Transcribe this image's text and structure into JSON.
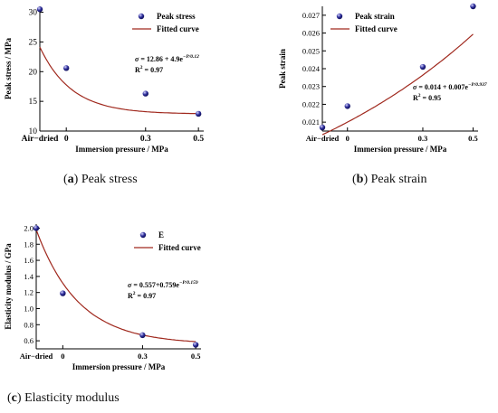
{
  "charts": [
    {
      "id": "a",
      "type": "scatter",
      "caption": {
        "letter": "a",
        "text": "Peak stress"
      },
      "xlabel": "Immersion pressure / MPa",
      "ylabel": "Peak stress / MPa",
      "xlim": [
        -0.1,
        0.52
      ],
      "ylim": [
        10,
        31
      ],
      "x_ticks": [
        {
          "value": -0.1,
          "label": "Air−dried"
        },
        {
          "value": 0,
          "label": "0"
        },
        {
          "value": 0.3,
          "label": "0.3"
        },
        {
          "value": 0.5,
          "label": "0.5"
        }
      ],
      "y_ticks": [
        10,
        15,
        20,
        25,
        30
      ],
      "y_tick_decimals": 0,
      "series": [
        {
          "name": "Peak stress",
          "kind": "points",
          "x": [
            -0.1,
            0,
            0.3,
            0.5
          ],
          "y": [
            30.5,
            20.6,
            16.3,
            12.9
          ]
        },
        {
          "name": "Fitted curve",
          "kind": "curve",
          "model": "exp_decay",
          "params": {
            "a": 12.86,
            "b": 4.9,
            "t": 0.12
          }
        }
      ],
      "equation": {
        "lhs": "σ",
        "rhs": " = 12.86 + 4.9e",
        "exp": "−P/0.12",
        "r2_label": "R",
        "r2_value": " = 0.97"
      }
    },
    {
      "id": "b",
      "type": "scatter",
      "caption": {
        "letter": "b",
        "text": "Peak strain"
      },
      "xlabel": "Immersion pressure / MPa",
      "ylabel": "Peak strain",
      "xlim": [
        -0.1,
        0.52
      ],
      "ylim": [
        0.0205,
        0.0275
      ],
      "x_ticks": [
        {
          "value": -0.1,
          "label": "Air−dried"
        },
        {
          "value": 0,
          "label": "0"
        },
        {
          "value": 0.3,
          "label": "0.3"
        },
        {
          "value": 0.5,
          "label": "0.5"
        }
      ],
      "y_ticks": [
        0.021,
        0.022,
        0.023,
        0.024,
        0.025,
        0.026,
        0.027
      ],
      "y_tick_decimals": 3,
      "series": [
        {
          "name": "Peak strain",
          "kind": "points",
          "x": [
            -0.1,
            0,
            0.3,
            0.5
          ],
          "y": [
            0.0207,
            0.0219,
            0.0241,
            0.0275
          ]
        },
        {
          "name": "Fitted curve",
          "kind": "curve",
          "model": "exp_growth",
          "params": {
            "a": 0.014,
            "b": 0.007,
            "t": 0.937
          }
        }
      ],
      "equation": {
        "lhs": "σ",
        "rhs": " = 0.014 + 0.007e",
        "exp": "−P/0.937",
        "r2_label": "R",
        "r2_value": " = 0.95"
      }
    },
    {
      "id": "c",
      "type": "scatter",
      "caption": {
        "letter": "c",
        "text": "Elasticity modulus"
      },
      "xlabel": "Immersion pressure / MPa",
      "ylabel": "Elasticity modulus / GPa",
      "xlim": [
        -0.1,
        0.52
      ],
      "ylim": [
        0.5,
        2.05
      ],
      "x_ticks": [
        {
          "value": -0.1,
          "label": "Air−dried"
        },
        {
          "value": 0,
          "label": "0"
        },
        {
          "value": 0.3,
          "label": "0.3"
        },
        {
          "value": 0.5,
          "label": "0.5"
        }
      ],
      "y_ticks": [
        0.6,
        0.8,
        1.0,
        1.2,
        1.4,
        1.6,
        1.8,
        2.0
      ],
      "y_tick_decimals": 1,
      "series": [
        {
          "name": "E",
          "kind": "points",
          "x": [
            -0.1,
            0,
            0.3,
            0.5
          ],
          "y": [
            2.0,
            1.19,
            0.67,
            0.55
          ]
        },
        {
          "name": "Fitted curve",
          "kind": "curve",
          "model": "exp_decay",
          "params": {
            "a": 0.557,
            "b": 0.759,
            "t": 0.159
          }
        }
      ],
      "equation": {
        "lhs": "σ",
        "rhs": " = 0.557+0.759e",
        "exp": "−P/0.159",
        "r2_label": "R",
        "r2_value": " = 0.97"
      }
    }
  ],
  "colors": {
    "curve": "#a0291e",
    "marker_fill": "#2d2d9a",
    "marker_highlight": "#d6d6ff",
    "axis": "#000000"
  }
}
